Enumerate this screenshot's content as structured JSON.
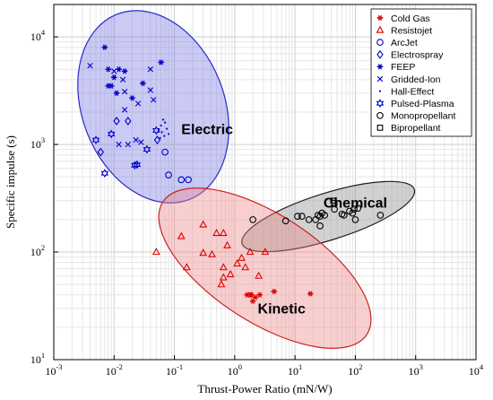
{
  "chart_data": {
    "type": "scatter",
    "xscale": "log",
    "yscale": "log",
    "xlim": [
      0.001,
      10000
    ],
    "ylim": [
      10,
      20000
    ],
    "xlabel": "Thrust-Power Ratio (mN/W)",
    "ylabel": "Specific impulse (s)",
    "grid": true,
    "legend_position": "top-right",
    "x_ticks": [
      {
        "value": 0.001,
        "mantissa": "10",
        "exp": "-3"
      },
      {
        "value": 0.01,
        "mantissa": "10",
        "exp": "-2"
      },
      {
        "value": 0.1,
        "mantissa": "10",
        "exp": "-1"
      },
      {
        "value": 1,
        "mantissa": "10",
        "exp": "0"
      },
      {
        "value": 10,
        "mantissa": "10",
        "exp": "1"
      },
      {
        "value": 100,
        "mantissa": "10",
        "exp": "2"
      },
      {
        "value": 1000,
        "mantissa": "10",
        "exp": "3"
      },
      {
        "value": 10000,
        "mantissa": "10",
        "exp": "4"
      }
    ],
    "y_ticks": [
      {
        "value": 10,
        "mantissa": "10",
        "exp": "1"
      },
      {
        "value": 100,
        "mantissa": "10",
        "exp": "2"
      },
      {
        "value": 1000,
        "mantissa": "10",
        "exp": "3"
      },
      {
        "value": 10000,
        "mantissa": "10",
        "exp": "4"
      }
    ],
    "regions": [
      {
        "label": "Electric",
        "fill": "#6666e0",
        "stroke": "#2a2acc",
        "opacity": 0.35,
        "ellipse": {
          "cx_log": -1.35,
          "cy_log": 3.35,
          "rx_log": 1.05,
          "ry_log": 0.9,
          "angle_deg": -55
        },
        "label_at": [
          0.35,
          1250
        ]
      },
      {
        "label": "Chemical",
        "fill": "#9a9a9a",
        "stroke": "#222222",
        "opacity": 0.45,
        "ellipse": {
          "cx_log": 1.55,
          "cy_log": 2.33,
          "rx_log": 1.45,
          "ry_log": 0.22,
          "angle_deg": 10
        },
        "label_at": [
          100,
          260
        ]
      },
      {
        "label": "Kinetic",
        "fill": "#ee8888",
        "stroke": "#cc2222",
        "opacity": 0.4,
        "ellipse": {
          "cx_log": 0.5,
          "cy_log": 1.85,
          "rx_log": 1.8,
          "ry_log": 0.52,
          "angle_deg": -20
        },
        "label_at": [
          6,
          27
        ]
      }
    ],
    "series": [
      {
        "name": "Cold Gas",
        "marker": "asterisk",
        "color": "#e00000",
        "points": [
          [
            1.6,
            40
          ],
          [
            1.9,
            40
          ],
          [
            2.2,
            38
          ],
          [
            2.0,
            35
          ],
          [
            2.6,
            40
          ],
          [
            4.5,
            43
          ],
          [
            18,
            41
          ],
          [
            1.8,
            40
          ]
        ]
      },
      {
        "name": "Resistojet",
        "marker": "triangle",
        "color": "#e00000",
        "points": [
          [
            0.05,
            100
          ],
          [
            0.13,
            140
          ],
          [
            0.3,
            180
          ],
          [
            0.16,
            72
          ],
          [
            0.5,
            150
          ],
          [
            0.65,
            150
          ],
          [
            0.75,
            115
          ],
          [
            0.3,
            98
          ],
          [
            0.42,
            95
          ],
          [
            0.65,
            72
          ],
          [
            0.65,
            58
          ],
          [
            0.6,
            50
          ],
          [
            0.85,
            62
          ],
          [
            1.1,
            78
          ],
          [
            1.5,
            72
          ],
          [
            1.8,
            100
          ],
          [
            1.3,
            88
          ],
          [
            3.2,
            100
          ],
          [
            2.5,
            60
          ]
        ]
      },
      {
        "name": "ArcJet",
        "marker": "circle",
        "color": "#0000cc",
        "points": [
          [
            0.07,
            850
          ],
          [
            0.08,
            520
          ],
          [
            0.13,
            470
          ],
          [
            0.17,
            470
          ]
        ]
      },
      {
        "name": "Electrospray",
        "marker": "diamond",
        "color": "#0000cc",
        "points": [
          [
            0.006,
            850
          ],
          [
            0.011,
            1650
          ],
          [
            0.017,
            1650
          ],
          [
            0.052,
            1100
          ]
        ]
      },
      {
        "name": "FEEP",
        "marker": "asterisk",
        "color": "#0000cc",
        "points": [
          [
            0.007,
            8000
          ],
          [
            0.008,
            5000
          ],
          [
            0.008,
            3500
          ],
          [
            0.009,
            3500
          ],
          [
            0.011,
            3000
          ],
          [
            0.012,
            5000
          ],
          [
            0.015,
            4800
          ],
          [
            0.02,
            2700
          ],
          [
            0.03,
            3700
          ],
          [
            0.06,
            5800
          ],
          [
            0.01,
            4200
          ]
        ]
      },
      {
        "name": "Gridded-Ion",
        "marker": "x",
        "color": "#0000cc",
        "points": [
          [
            0.004,
            5400
          ],
          [
            0.01,
            4800
          ],
          [
            0.014,
            4000
          ],
          [
            0.015,
            3100
          ],
          [
            0.015,
            2100
          ],
          [
            0.012,
            1000
          ],
          [
            0.017,
            1000
          ],
          [
            0.023,
            1100
          ],
          [
            0.025,
            2400
          ],
          [
            0.04,
            5000
          ],
          [
            0.04,
            3200
          ],
          [
            0.045,
            2600
          ],
          [
            0.028,
            1050
          ]
        ]
      },
      {
        "name": "Hall-Effect",
        "marker": "dot",
        "color": "#0000cc",
        "points": [
          [
            0.055,
            1350
          ],
          [
            0.06,
            1500
          ],
          [
            0.065,
            1700
          ],
          [
            0.07,
            1600
          ],
          [
            0.075,
            1400
          ],
          [
            0.068,
            1200
          ],
          [
            0.058,
            1150
          ],
          [
            0.062,
            1300
          ],
          [
            0.08,
            1250
          ]
        ]
      },
      {
        "name": "Pulsed-Plasma",
        "marker": "star6",
        "color": "#0000cc",
        "points": [
          [
            0.005,
            1100
          ],
          [
            0.007,
            540
          ],
          [
            0.009,
            1250
          ],
          [
            0.022,
            640
          ],
          [
            0.024,
            650
          ],
          [
            0.035,
            900
          ],
          [
            0.05,
            1350
          ]
        ]
      },
      {
        "name": "Monopropellant",
        "marker": "circle",
        "color": "#000000",
        "points": [
          [
            2.0,
            200
          ],
          [
            7,
            195
          ],
          [
            11,
            215
          ],
          [
            13,
            215
          ],
          [
            17,
            200
          ],
          [
            22,
            200
          ],
          [
            24,
            220
          ],
          [
            26,
            215
          ],
          [
            28,
            230
          ],
          [
            31,
            220
          ],
          [
            45,
            250
          ],
          [
            60,
            225
          ],
          [
            65,
            220
          ],
          [
            80,
            240
          ],
          [
            90,
            230
          ],
          [
            95,
            250
          ],
          [
            100,
            200
          ],
          [
            260,
            220
          ],
          [
            110,
            255
          ],
          [
            26,
            175
          ]
        ]
      },
      {
        "name": "Bipropellant",
        "marker": "square",
        "color": "#000000",
        "points": [
          [
            43,
            300
          ],
          [
            45,
            285
          ]
        ]
      }
    ]
  }
}
